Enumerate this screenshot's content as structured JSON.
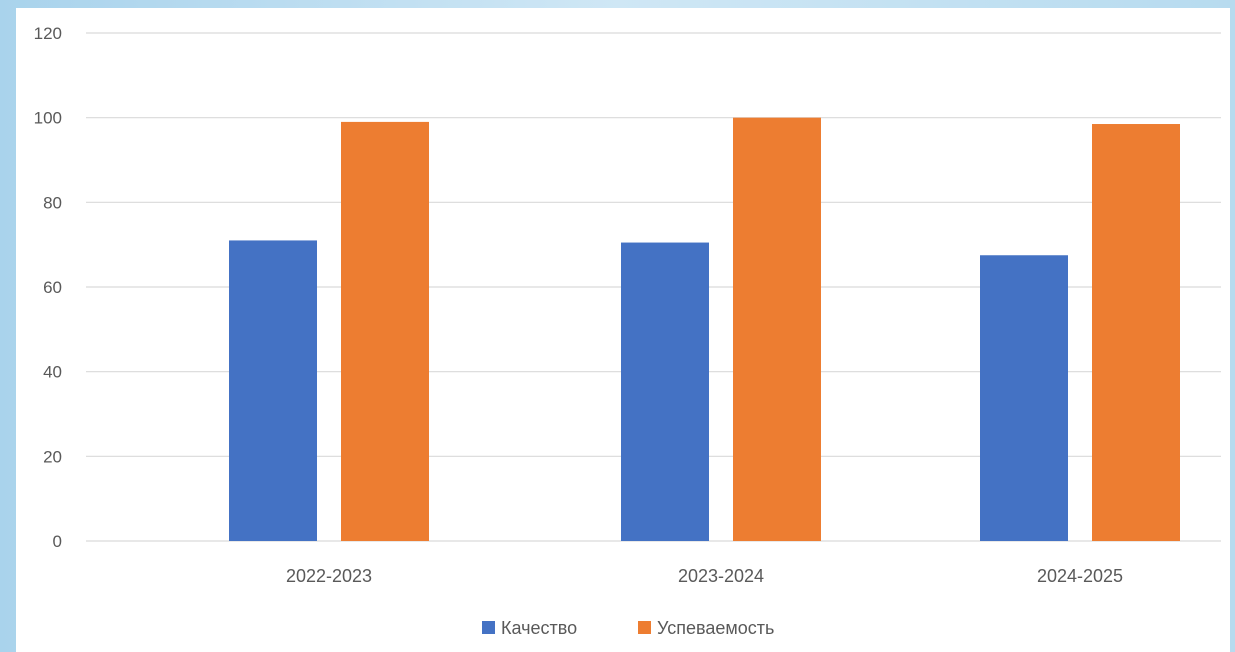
{
  "chart_data": {
    "type": "bar",
    "categories": [
      "2022-2023",
      "2023-2024",
      "2024-2025"
    ],
    "series": [
      {
        "name": "Качество",
        "values": [
          71,
          70.5,
          67.5
        ],
        "color": "#4472c4"
      },
      {
        "name": "Успеваемость",
        "values": [
          99,
          100,
          98.5
        ],
        "color": "#ed7d31"
      }
    ],
    "ylim": [
      0,
      120
    ],
    "yticks": [
      0,
      20,
      40,
      60,
      80,
      100,
      120
    ],
    "grid": true,
    "legend_position": "bottom"
  }
}
